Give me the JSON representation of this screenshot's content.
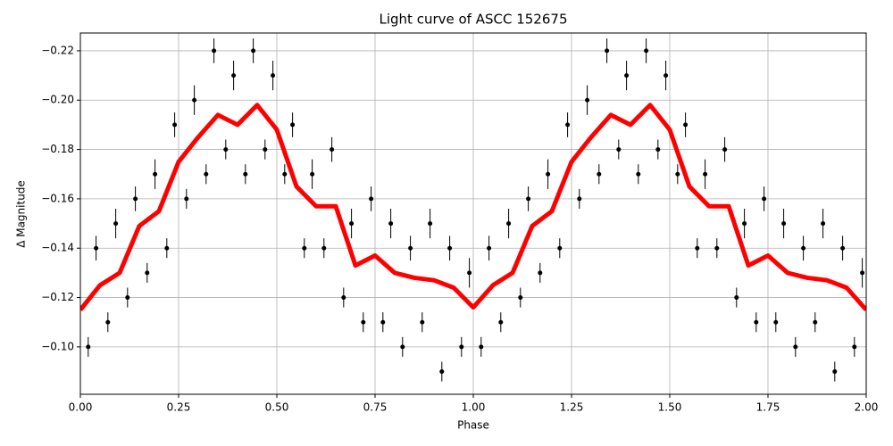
{
  "chart_data": {
    "type": "scatter",
    "title": "Light curve of ASCC 152675",
    "xlabel": "Phase",
    "ylabel": "Δ Magnitude",
    "xlim": [
      0,
      2
    ],
    "ylim": [
      -0.0808,
      -0.2272
    ],
    "grid": true,
    "xticks": [
      {
        "value": 0,
        "label": "0.00"
      },
      {
        "value": 0.25,
        "label": "0.25"
      },
      {
        "value": 0.5,
        "label": "0.50"
      },
      {
        "value": 0.75,
        "label": "0.75"
      },
      {
        "value": 1,
        "label": "1.00"
      },
      {
        "value": 1.25,
        "label": "1.25"
      },
      {
        "value": 1.5,
        "label": "1.50"
      },
      {
        "value": 1.75,
        "label": "1.75"
      },
      {
        "value": 2,
        "label": "2.00"
      }
    ],
    "yticks": [
      {
        "value": -0.1,
        "label": "−0.10"
      },
      {
        "value": -0.12,
        "label": "−0.12"
      },
      {
        "value": -0.14,
        "label": "−0.14"
      },
      {
        "value": -0.16,
        "label": "−0.16"
      },
      {
        "value": -0.18,
        "label": "−0.18"
      },
      {
        "value": -0.2,
        "label": "−0.20"
      },
      {
        "value": -0.22,
        "label": "−0.22"
      }
    ],
    "series": [
      {
        "kind": "errorbar",
        "color": "#000000",
        "x": [
          0.02,
          0.04,
          0.07,
          0.09,
          0.12,
          0.14,
          0.17,
          0.19,
          0.22,
          0.24,
          0.27,
          0.29,
          0.32,
          0.34,
          0.37,
          0.39,
          0.42,
          0.44,
          0.47,
          0.49,
          0.52,
          0.54,
          0.57,
          0.59,
          0.62,
          0.64,
          0.67,
          0.69,
          0.72,
          0.74,
          0.77,
          0.79,
          0.82,
          0.84,
          0.87,
          0.89,
          0.92,
          0.94,
          0.97,
          0.99,
          1.02,
          1.04,
          1.07,
          1.09,
          1.12,
          1.14,
          1.17,
          1.19,
          1.22,
          1.24,
          1.27,
          1.29,
          1.32,
          1.34,
          1.37,
          1.39,
          1.42,
          1.44,
          1.47,
          1.49,
          1.52,
          1.54,
          1.57,
          1.59,
          1.62,
          1.64,
          1.67,
          1.69,
          1.72,
          1.74,
          1.77,
          1.79,
          1.82,
          1.84,
          1.87,
          1.89,
          1.92,
          1.94,
          1.97,
          1.99
        ],
        "values": [
          -0.1,
          -0.14,
          -0.11,
          -0.15,
          -0.12,
          -0.16,
          -0.13,
          -0.17,
          -0.14,
          -0.19,
          -0.16,
          -0.2,
          -0.17,
          -0.22,
          -0.18,
          -0.21,
          -0.17,
          -0.22,
          -0.18,
          -0.21,
          -0.17,
          -0.19,
          -0.14,
          -0.17,
          -0.14,
          -0.18,
          -0.12,
          -0.15,
          -0.11,
          -0.16,
          -0.11,
          -0.15,
          -0.1,
          -0.14,
          -0.11,
          -0.15,
          -0.09,
          -0.14,
          -0.1,
          -0.13,
          -0.1,
          -0.14,
          -0.11,
          -0.15,
          -0.12,
          -0.16,
          -0.13,
          -0.17,
          -0.14,
          -0.19,
          -0.16,
          -0.2,
          -0.17,
          -0.22,
          -0.18,
          -0.21,
          -0.17,
          -0.22,
          -0.18,
          -0.21,
          -0.17,
          -0.19,
          -0.14,
          -0.17,
          -0.14,
          -0.18,
          -0.12,
          -0.15,
          -0.11,
          -0.16,
          -0.11,
          -0.15,
          -0.1,
          -0.14,
          -0.11,
          -0.15,
          -0.09,
          -0.14,
          -0.1,
          -0.13
        ],
        "errors": [
          0.004,
          0.005,
          0.004,
          0.006,
          0.004,
          0.005,
          0.004,
          0.006,
          0.004,
          0.005,
          0.004,
          0.006,
          0.004,
          0.005,
          0.004,
          0.006,
          0.004,
          0.005,
          0.004,
          0.006,
          0.004,
          0.005,
          0.004,
          0.006,
          0.004,
          0.005,
          0.004,
          0.006,
          0.004,
          0.005,
          0.004,
          0.006,
          0.004,
          0.005,
          0.004,
          0.006,
          0.004,
          0.005,
          0.004,
          0.006,
          0.004,
          0.005,
          0.004,
          0.006,
          0.004,
          0.005,
          0.004,
          0.006,
          0.004,
          0.005,
          0.004,
          0.006,
          0.004,
          0.005,
          0.004,
          0.006,
          0.004,
          0.005,
          0.004,
          0.006,
          0.004,
          0.005,
          0.004,
          0.006,
          0.004,
          0.005,
          0.004,
          0.006,
          0.004,
          0.005,
          0.004,
          0.006,
          0.004,
          0.005,
          0.004,
          0.006,
          0.004,
          0.005,
          0.004,
          0.006
        ]
      },
      {
        "kind": "line",
        "color": "#ff0000",
        "x": [
          0,
          0.05,
          0.1,
          0.15,
          0.2,
          0.25,
          0.3,
          0.35,
          0.4,
          0.45,
          0.5,
          0.55,
          0.6,
          0.65,
          0.7,
          0.75,
          0.8,
          0.85,
          0.9,
          0.95,
          1,
          1.05,
          1.1,
          1.15,
          1.2,
          1.25,
          1.3,
          1.35,
          1.4,
          1.45,
          1.5,
          1.55,
          1.6,
          1.65,
          1.7,
          1.75,
          1.8,
          1.85,
          1.9,
          1.95,
          2
        ],
        "values": [
          -0.115,
          -0.125,
          -0.13,
          -0.149,
          -0.155,
          -0.175,
          -0.185,
          -0.194,
          -0.19,
          -0.198,
          -0.188,
          -0.165,
          -0.157,
          -0.157,
          -0.133,
          -0.137,
          -0.13,
          -0.128,
          -0.127,
          -0.124,
          -0.116,
          -0.125,
          -0.13,
          -0.149,
          -0.155,
          -0.175,
          -0.185,
          -0.194,
          -0.19,
          -0.198,
          -0.188,
          -0.165,
          -0.157,
          -0.157,
          -0.133,
          -0.137,
          -0.13,
          -0.128,
          -0.127,
          -0.124,
          -0.115
        ]
      }
    ]
  }
}
